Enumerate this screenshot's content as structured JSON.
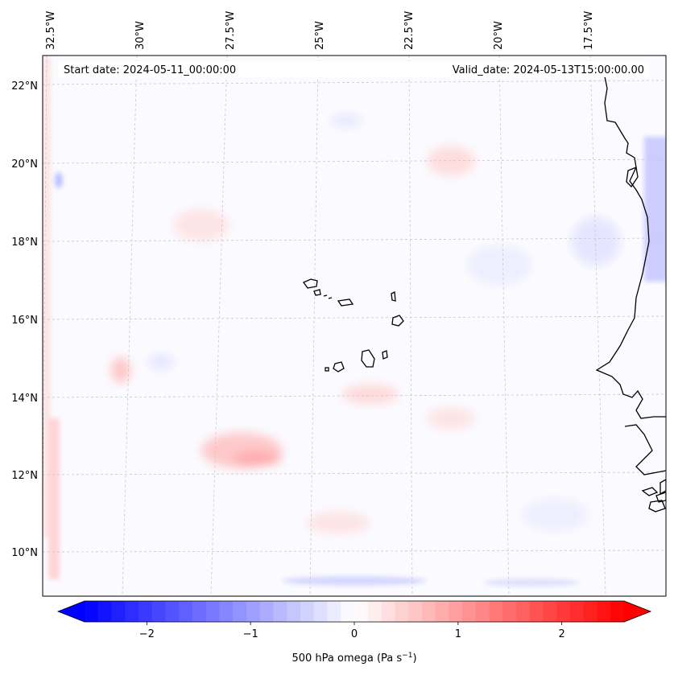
{
  "header": {
    "start_date": "Start date: 2024-05-11_00:00:00",
    "valid_date": "Valid_date: 2024-05-13T15:00:00.00"
  },
  "lon_ticks": [
    "32.5°W",
    "30°W",
    "27.5°W",
    "25°W",
    "22.5°W",
    "20°W",
    "17.5°W"
  ],
  "lat_ticks": [
    "22°N",
    "20°N",
    "18°N",
    "16°N",
    "14°N",
    "12°N",
    "10°N"
  ],
  "colorbar": {
    "ticks": [
      "−2",
      "−1",
      "0",
      "1",
      "2"
    ],
    "label": "500 hPa omega (Pa s",
    "label_sup": "−1",
    "label_close": ")",
    "range": [
      -2.6,
      2.6
    ],
    "colors": {
      "low": "#0000ff",
      "mid": "#ffffff",
      "high": "#ff0000"
    }
  },
  "map_colors": {
    "coast": "#000000",
    "grid": "#c8c8c8"
  }
}
